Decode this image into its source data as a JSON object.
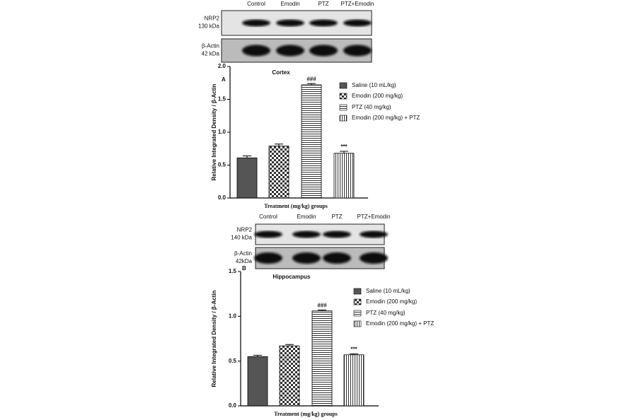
{
  "chart_data": [
    {
      "type": "bar",
      "panel_label": "A",
      "title": "Cortex",
      "xlabel": "Treatment (mg/kg) groups",
      "ylabel": "Relative Integrated Density / β-Actin",
      "blot": {
        "lanes": [
          "Control",
          "Emodin",
          "PTZ",
          "PTZ+Emodin"
        ],
        "rows": [
          {
            "name": "NRP2",
            "size": "130 kDa"
          },
          {
            "name": "β-Actin",
            "size": "42 kDa"
          }
        ]
      },
      "categories": [
        "Saline (10 mL/kg)",
        "Emodin (200 mg/kg)",
        "PTZ (40 mg/kg)",
        "Emodin (200 mg/kg) + PTZ"
      ],
      "values": [
        0.61,
        0.79,
        1.72,
        0.68
      ],
      "errors": [
        0.03,
        0.03,
        0.02,
        0.03
      ],
      "annotations": [
        null,
        null,
        "###",
        "***"
      ],
      "patterns": [
        "solid",
        "checker",
        "hlines",
        "vlines"
      ],
      "color": "#555555",
      "ylim": [
        0,
        2
      ],
      "yticks": [
        {
          "value": 0,
          "label": "0.0"
        },
        0.5,
        {
          "value": 1,
          "label": "1.0"
        },
        1.5,
        {
          "value": 2,
          "label": "2.0"
        }
      ]
    },
    {
      "type": "bar",
      "panel_label": "B",
      "title": "Hippocampus",
      "xlabel": "Treatment (mg/kg) groups",
      "ylabel": "Relative Integrated Density / β-Actin",
      "blot": {
        "lanes": [
          "Control",
          "Emodin",
          "PTZ",
          "PTZ+Emodin"
        ],
        "rows": [
          {
            "name": "NRP2",
            "size": "140 kDa"
          },
          {
            "name": "β-Actin",
            "size": "42kDa"
          }
        ]
      },
      "categories": [
        "Saline (10 mL/kg)",
        "Emodin (200 mg/kg)",
        "PTZ (40 mg/kg)",
        "Emodin (200 mg/kg) + PTZ"
      ],
      "values": [
        0.55,
        0.67,
        1.06,
        0.57
      ],
      "errors": [
        0.015,
        0.015,
        0.01,
        0.01
      ],
      "annotations": [
        null,
        null,
        "###",
        "***"
      ],
      "patterns": [
        "solid",
        "checker",
        "hlines",
        "vlines"
      ],
      "color": "#555555",
      "ylim": [
        0,
        1.5
      ],
      "yticks": [
        {
          "value": 0,
          "label": "0.0"
        },
        0.5,
        {
          "value": 1,
          "label": "1.0"
        },
        1.5
      ]
    }
  ]
}
